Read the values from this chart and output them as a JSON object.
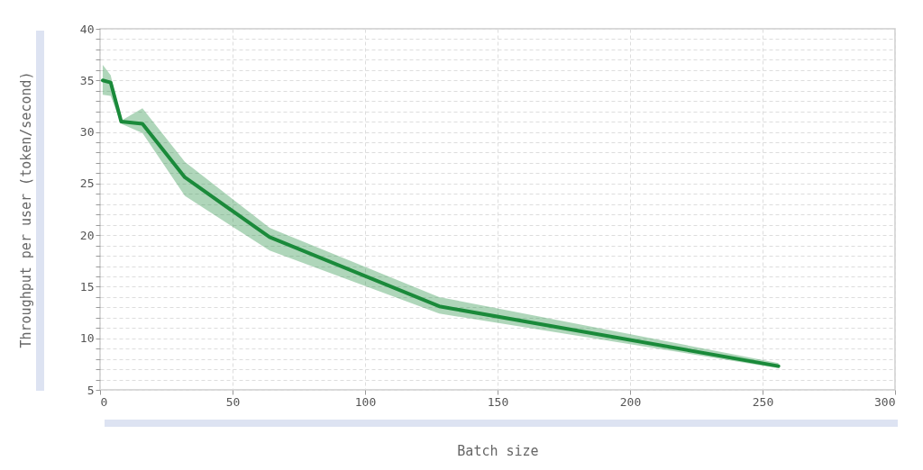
{
  "chart_data": {
    "type": "line",
    "xlabel": "Batch size",
    "ylabel": "Throughput per user (token/second)",
    "x": [
      1,
      4,
      8,
      16,
      32,
      64,
      128,
      256
    ],
    "series": [
      {
        "color": "#1a8a3a",
        "values": [
          35.0,
          34.8,
          31.0,
          30.8,
          25.6,
          19.8,
          13.1,
          7.3
        ],
        "lower": [
          33.6,
          33.5,
          30.8,
          29.9,
          23.8,
          18.5,
          12.4,
          7.1
        ],
        "upper": [
          36.5,
          35.5,
          31.1,
          32.3,
          27.1,
          20.7,
          14.0,
          7.6
        ]
      }
    ],
    "xlim": [
      0,
      300
    ],
    "xticks": [
      0,
      50,
      100,
      150,
      200,
      250,
      300
    ],
    "ylim": [
      5,
      40
    ],
    "yticks": [
      5,
      {
        "value": 6,
        "label": null
      },
      {
        "value": 7,
        "label": null
      },
      {
        "value": 8,
        "label": null
      },
      {
        "value": 9,
        "label": null
      },
      10,
      {
        "value": 11,
        "label": null
      },
      {
        "value": 12,
        "label": null
      },
      {
        "value": 13,
        "label": null
      },
      {
        "value": 14,
        "label": null
      },
      15,
      {
        "value": 16,
        "label": null
      },
      {
        "value": 17,
        "label": null
      },
      {
        "value": 18,
        "label": null
      },
      {
        "value": 19,
        "label": null
      },
      20,
      {
        "value": 21,
        "label": null
      },
      {
        "value": 22,
        "label": null
      },
      {
        "value": 23,
        "label": null
      },
      {
        "value": 24,
        "label": null
      },
      25,
      {
        "value": 26,
        "label": null
      },
      {
        "value": 27,
        "label": null
      },
      {
        "value": 28,
        "label": null
      },
      {
        "value": 29,
        "label": null
      },
      30,
      {
        "value": 31,
        "label": null
      },
      {
        "value": 32,
        "label": null
      },
      {
        "value": 33,
        "label": null
      },
      {
        "value": 34,
        "label": null
      },
      35,
      {
        "value": 36,
        "label": null
      },
      {
        "value": 37,
        "label": null
      },
      {
        "value": 38,
        "label": null
      },
      {
        "value": 39,
        "label": null
      },
      40
    ],
    "grid": true,
    "line_style": "solid"
  }
}
